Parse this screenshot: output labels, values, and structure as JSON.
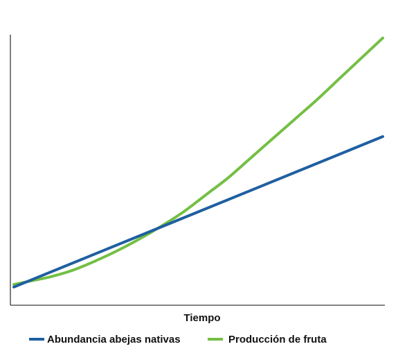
{
  "chart_data": {
    "type": "line",
    "title": "",
    "xlabel": "Tiempo",
    "ylabel": "",
    "xlim": [
      0,
      100
    ],
    "ylim": [
      0,
      100
    ],
    "grid": false,
    "legend_placement": "bottom",
    "series": [
      {
        "name": "Abundancia abejas nativas",
        "color": "#1f5fa0",
        "x": [
          0,
          100
        ],
        "y": [
          7,
          65
        ]
      },
      {
        "name": "Producción de fruta",
        "color": "#74bf44",
        "x": [
          0,
          5,
          10,
          16,
          22,
          28,
          34,
          40,
          46,
          52,
          58,
          64,
          70,
          76,
          82,
          88,
          94,
          100
        ],
        "y": [
          8,
          9.5,
          11,
          13.5,
          17,
          21,
          25.5,
          30.5,
          36,
          42.5,
          49,
          56.5,
          64,
          71.5,
          79,
          87,
          95,
          103
        ]
      }
    ]
  }
}
